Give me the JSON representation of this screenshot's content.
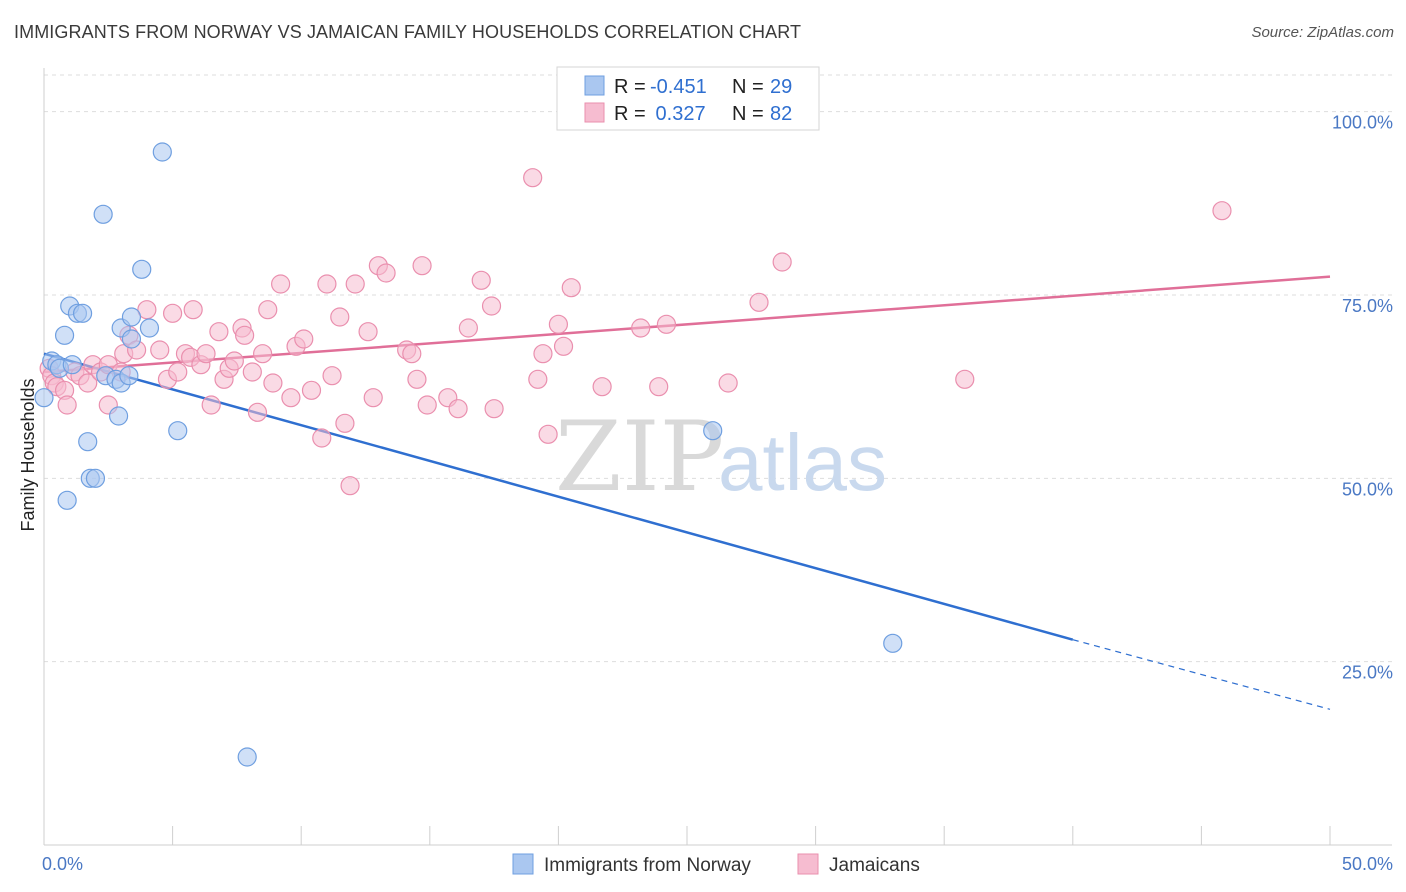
{
  "header": {
    "title": "IMMIGRANTS FROM NORWAY VS JAMAICAN FAMILY HOUSEHOLDS CORRELATION CHART",
    "source": "Source: ZipAtlas.com"
  },
  "colors": {
    "blue_fill": "#aac7f0",
    "blue_stroke": "#6f9fe0",
    "blue_line": "#2f6fd0",
    "pink_fill": "#f6bcd0",
    "pink_stroke": "#ea8fae",
    "pink_line": "#e06f98",
    "grid": "#dddddd",
    "tick_label": "#4a78c4"
  },
  "stats_box": {
    "rows": [
      {
        "r_label": "R =",
        "r_value": "-0.451",
        "n_label": "N =",
        "n_value": "29",
        "series": "blue"
      },
      {
        "r_label": "R =",
        "r_value": " 0.327",
        "n_label": "N =",
        "n_value": "82",
        "series": "pink"
      }
    ]
  },
  "watermark": {
    "part1": "ZIP",
    "part2": "atlas"
  },
  "chart_data": {
    "type": "scatter",
    "title": "IMMIGRANTS FROM NORWAY VS JAMAICAN FAMILY HOUSEHOLDS CORRELATION CHART",
    "xlabel": "",
    "ylabel": "Family Households",
    "xlim": [
      0,
      50
    ],
    "ylim": [
      0,
      105
    ],
    "x_tick_labels": [
      {
        "value": 0,
        "label": "0.0%"
      },
      {
        "value": 50,
        "label": "50.0%"
      }
    ],
    "x_minor_ticks": [
      0,
      5,
      10,
      15,
      20,
      25,
      30,
      35,
      40,
      45,
      50
    ],
    "y_ticks": [
      {
        "value": 25,
        "label": "25.0%"
      },
      {
        "value": 50,
        "label": "50.0%"
      },
      {
        "value": 75,
        "label": "75.0%"
      },
      {
        "value": 100,
        "label": "100.0%"
      }
    ],
    "grid": true,
    "legend_position": "bottom-center",
    "series": [
      {
        "name": "Immigrants from Norway",
        "color": "blue",
        "points": [
          [
            0.0,
            61.0
          ],
          [
            0.3,
            66.0
          ],
          [
            0.5,
            65.5
          ],
          [
            0.6,
            65.0
          ],
          [
            0.8,
            69.5
          ],
          [
            0.9,
            47.0
          ],
          [
            1.0,
            73.5
          ],
          [
            1.1,
            65.5
          ],
          [
            1.3,
            72.5
          ],
          [
            1.5,
            72.5
          ],
          [
            1.7,
            55.0
          ],
          [
            1.8,
            50.0
          ],
          [
            2.0,
            50.0
          ],
          [
            2.3,
            86.0
          ],
          [
            2.4,
            64.0
          ],
          [
            2.8,
            63.5
          ],
          [
            2.9,
            58.5
          ],
          [
            3.0,
            70.5
          ],
          [
            3.0,
            63.0
          ],
          [
            3.4,
            72.0
          ],
          [
            3.8,
            78.5
          ],
          [
            3.4,
            69.0
          ],
          [
            4.1,
            70.5
          ],
          [
            4.6,
            94.5
          ],
          [
            5.2,
            56.5
          ],
          [
            7.9,
            12.0
          ],
          [
            26.0,
            56.5
          ],
          [
            33.0,
            27.5
          ],
          [
            3.3,
            64.0
          ]
        ],
        "trend": {
          "x0": 0,
          "y0": 67.0,
          "x1": 40,
          "y1": 28.0,
          "dash_x1": 50,
          "dash_y1": 18.5
        }
      },
      {
        "name": "Jamaicans",
        "color": "pink",
        "points": [
          [
            0.2,
            65.0
          ],
          [
            0.3,
            64.0
          ],
          [
            0.4,
            63.0
          ],
          [
            0.5,
            62.5
          ],
          [
            0.8,
            62.0
          ],
          [
            0.9,
            60.0
          ],
          [
            1.2,
            64.5
          ],
          [
            1.4,
            64.0
          ],
          [
            1.7,
            63.0
          ],
          [
            1.9,
            65.5
          ],
          [
            2.2,
            64.5
          ],
          [
            2.5,
            60.0
          ],
          [
            2.5,
            65.5
          ],
          [
            3.0,
            64.5
          ],
          [
            3.1,
            67.0
          ],
          [
            3.3,
            69.5
          ],
          [
            3.6,
            67.5
          ],
          [
            4.0,
            73.0
          ],
          [
            4.5,
            67.5
          ],
          [
            4.8,
            63.5
          ],
          [
            5.0,
            72.5
          ],
          [
            5.2,
            64.5
          ],
          [
            5.5,
            67.0
          ],
          [
            5.7,
            66.5
          ],
          [
            5.8,
            73.0
          ],
          [
            6.1,
            65.5
          ],
          [
            6.3,
            67.0
          ],
          [
            6.5,
            60.0
          ],
          [
            6.8,
            70.0
          ],
          [
            7.0,
            63.5
          ],
          [
            7.2,
            65.0
          ],
          [
            7.4,
            66.0
          ],
          [
            7.7,
            70.5
          ],
          [
            7.8,
            69.5
          ],
          [
            8.1,
            64.5
          ],
          [
            8.3,
            59.0
          ],
          [
            8.5,
            67.0
          ],
          [
            8.7,
            73.0
          ],
          [
            8.9,
            63.0
          ],
          [
            9.2,
            76.5
          ],
          [
            9.6,
            61.0
          ],
          [
            9.8,
            68.0
          ],
          [
            10.1,
            69.0
          ],
          [
            10.4,
            62.0
          ],
          [
            10.8,
            55.5
          ],
          [
            11.0,
            76.5
          ],
          [
            11.2,
            64.0
          ],
          [
            11.5,
            72.0
          ],
          [
            11.7,
            57.5
          ],
          [
            11.9,
            49.0
          ],
          [
            12.1,
            76.5
          ],
          [
            12.6,
            70.0
          ],
          [
            12.8,
            61.0
          ],
          [
            13.0,
            79.0
          ],
          [
            13.3,
            78.0
          ],
          [
            14.1,
            67.5
          ],
          [
            14.3,
            67.0
          ],
          [
            14.5,
            63.5
          ],
          [
            14.7,
            79.0
          ],
          [
            14.9,
            60.0
          ],
          [
            15.7,
            61.0
          ],
          [
            16.1,
            59.5
          ],
          [
            16.5,
            70.5
          ],
          [
            17.0,
            77.0
          ],
          [
            17.4,
            73.5
          ],
          [
            17.5,
            59.5
          ],
          [
            19.0,
            91.0
          ],
          [
            19.2,
            63.5
          ],
          [
            19.4,
            67.0
          ],
          [
            19.6,
            56.0
          ],
          [
            20.0,
            71.0
          ],
          [
            20.2,
            68.0
          ],
          [
            20.5,
            76.0
          ],
          [
            21.7,
            62.5
          ],
          [
            23.2,
            70.5
          ],
          [
            23.9,
            62.5
          ],
          [
            24.2,
            71.0
          ],
          [
            26.6,
            63.0
          ],
          [
            27.8,
            74.0
          ],
          [
            28.7,
            79.5
          ],
          [
            35.8,
            63.5
          ],
          [
            45.8,
            86.5
          ]
        ],
        "trend": {
          "x0": 0,
          "y0": 64.5,
          "x1": 50,
          "y1": 77.5
        }
      }
    ]
  }
}
